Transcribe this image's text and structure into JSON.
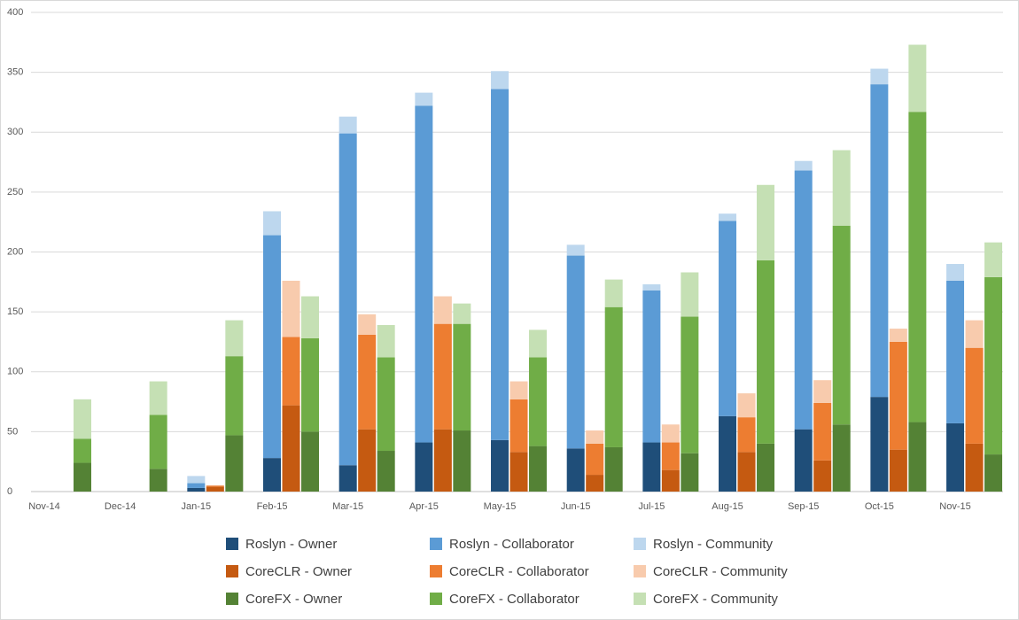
{
  "chart_data": {
    "type": "bar",
    "categories": [
      "Nov-14",
      "Dec-14",
      "Jan-15",
      "Feb-15",
      "Mar-15",
      "Apr-15",
      "May-15",
      "Jun-15",
      "Jul-15",
      "Aug-15",
      "Sep-15",
      "Oct-15",
      "Nov-15"
    ],
    "series": [
      {
        "name": "Roslyn - Owner",
        "color": "#1f4e79",
        "values": [
          0,
          0,
          3,
          28,
          22,
          41,
          43,
          36,
          41,
          63,
          52,
          79,
          57
        ]
      },
      {
        "name": "Roslyn - Collaborator",
        "color": "#5b9bd5",
        "values": [
          0,
          0,
          4,
          186,
          277,
          281,
          293,
          161,
          127,
          163,
          216,
          261,
          119
        ]
      },
      {
        "name": "Roslyn - Community",
        "color": "#bdd7ee",
        "values": [
          0,
          0,
          6,
          20,
          14,
          11,
          15,
          9,
          5,
          6,
          8,
          13,
          14
        ]
      },
      {
        "name": "CoreCLR - Owner",
        "color": "#c55a11",
        "values": [
          0,
          0,
          4,
          72,
          52,
          52,
          33,
          14,
          18,
          33,
          26,
          35,
          40
        ]
      },
      {
        "name": "CoreCLR - Collaborator",
        "color": "#ed7d31",
        "values": [
          0,
          0,
          1,
          57,
          79,
          88,
          44,
          26,
          23,
          29,
          48,
          90,
          80
        ]
      },
      {
        "name": "CoreCLR - Community",
        "color": "#f8cbad",
        "values": [
          0,
          0,
          0,
          47,
          17,
          23,
          15,
          11,
          15,
          20,
          19,
          11,
          23
        ]
      },
      {
        "name": "CoreFX - Owner",
        "color": "#548235",
        "values": [
          24,
          19,
          47,
          50,
          34,
          51,
          38,
          37,
          32,
          40,
          56,
          58,
          31
        ]
      },
      {
        "name": "CoreFX - Collaborator",
        "color": "#70ad47",
        "values": [
          20,
          45,
          66,
          78,
          78,
          89,
          74,
          117,
          114,
          153,
          166,
          259,
          148
        ]
      },
      {
        "name": "CoreFX - Community",
        "color": "#c5e0b4",
        "values": [
          33,
          28,
          30,
          35,
          27,
          17,
          23,
          23,
          37,
          63,
          63,
          56,
          29
        ]
      }
    ],
    "ylim": [
      0,
      400
    ],
    "yticks": [
      0,
      50,
      100,
      150,
      200,
      250,
      300,
      350,
      400
    ],
    "grid": true
  }
}
